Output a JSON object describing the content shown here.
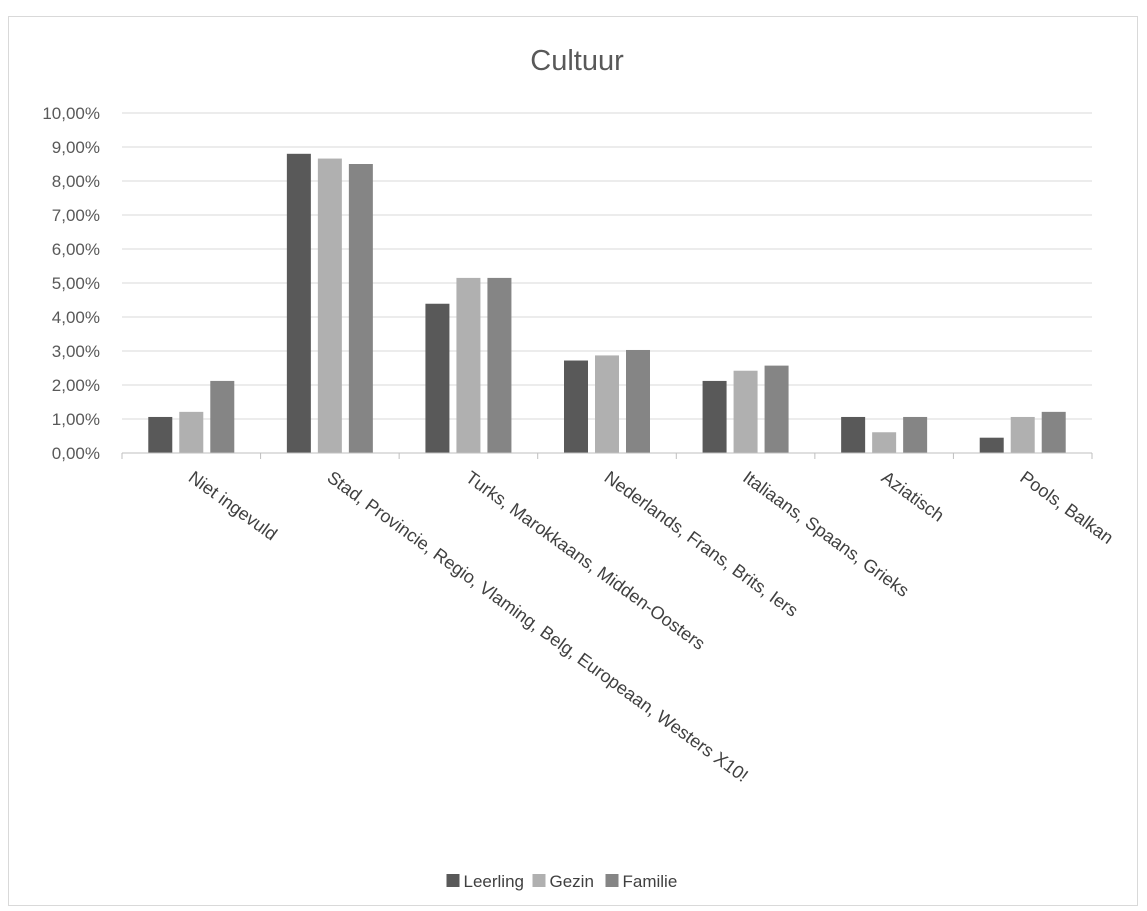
{
  "chart_data": {
    "type": "bar",
    "title": "Cultuur",
    "xlabel": "",
    "ylabel": "",
    "ylim": [
      0,
      0.1
    ],
    "y_ticks": [
      "0,00%",
      "1,00%",
      "2,00%",
      "3,00%",
      "4,00%",
      "5,00%",
      "6,00%",
      "7,00%",
      "8,00%",
      "9,00%",
      "10,00%"
    ],
    "grid": true,
    "legend_position": "bottom",
    "categories": [
      "Niet ingevuld",
      "Stad, Provincie, Regio, Vlaming, Belg, Europeaan, Westers X10!",
      "Turks, Marokkaans, Midden-Oosters",
      "Nederlands, Frans, Brits, Iers",
      "Italiaans, Spaans, Grieks",
      "Aziatisch",
      "Pools, Balkan"
    ],
    "series": [
      {
        "name": "Leerling",
        "color": "#595959",
        "values": [
          0.0106,
          0.088,
          0.0439,
          0.0272,
          0.0212,
          0.0106,
          0.0045
        ]
      },
      {
        "name": "Gezin",
        "color": "#b0b0b0",
        "values": [
          0.0121,
          0.0866,
          0.0515,
          0.0287,
          0.0242,
          0.0061,
          0.0106
        ]
      },
      {
        "name": "Familie",
        "color": "#858585",
        "values": [
          0.0212,
          0.085,
          0.0515,
          0.0303,
          0.0257,
          0.0106,
          0.0121
        ]
      }
    ]
  }
}
